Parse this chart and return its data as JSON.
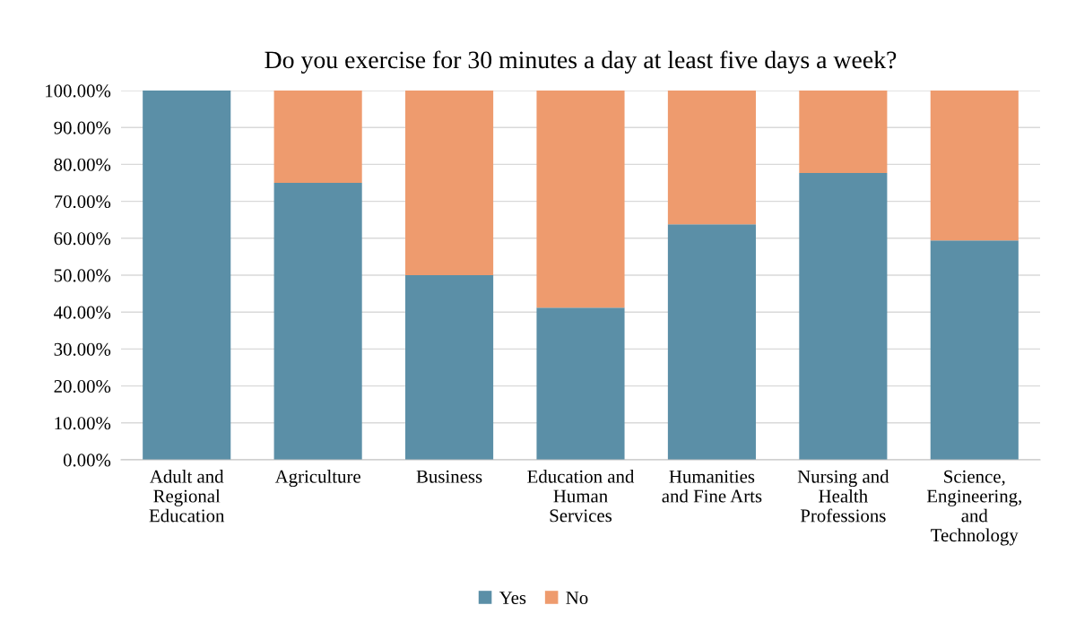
{
  "chart_data": {
    "type": "bar",
    "stacked": true,
    "title": "Do you exercise for 30 minutes a day at least five days a week?",
    "categories": [
      "Adult and\nRegional\nEducation",
      "Agriculture",
      "Business",
      "Education and\nHuman\nServices",
      "Humanities\nand Fine Arts",
      "Nursing and\nHealth\nProfessions",
      "Science,\nEngineering,\nand\nTechnology"
    ],
    "series": [
      {
        "name": "Yes",
        "color": "#5b8fa7",
        "values": [
          100,
          75,
          50,
          41.2,
          63.8,
          77.7,
          59.4
        ]
      },
      {
        "name": "No",
        "color": "#ee9b6e",
        "values": [
          0,
          25,
          50,
          58.8,
          36.2,
          22.3,
          40.6
        ]
      }
    ],
    "ylim": [
      0,
      100
    ],
    "yticks": [
      {
        "value": 0,
        "label": "0.00%"
      },
      {
        "value": 10,
        "label": "10.00%"
      },
      {
        "value": 20,
        "label": "20.00%"
      },
      {
        "value": 30,
        "label": "30.00%"
      },
      {
        "value": 40,
        "label": "40.00%"
      },
      {
        "value": 50,
        "label": "50.00%"
      },
      {
        "value": 60,
        "label": "60.00%"
      },
      {
        "value": 70,
        "label": "70.00%"
      },
      {
        "value": 80,
        "label": "80.00%"
      },
      {
        "value": 90,
        "label": "90.00%"
      },
      {
        "value": 100,
        "label": "100.00%"
      }
    ],
    "grid": "y",
    "legend": "bottom"
  }
}
